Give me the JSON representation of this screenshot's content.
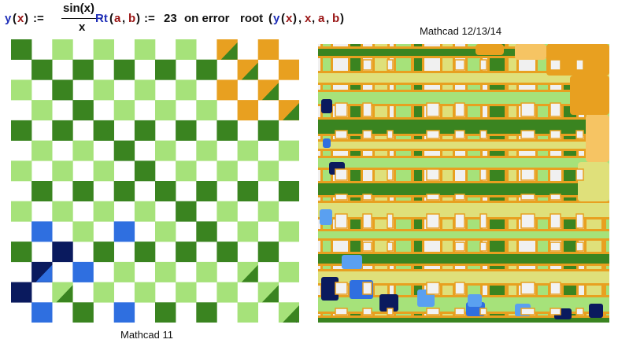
{
  "formula": {
    "y_name": "y",
    "y_arg": "x",
    "define": ":=",
    "numerator": "sin(x)",
    "denominator": "x",
    "rt_name": "Rt",
    "rt_a": "a",
    "rt_b": "b",
    "rt_value": "23",
    "on_error": "on error",
    "root_fn": "root",
    "root_y": "y",
    "root_x": "x",
    "root_a": "a",
    "root_b": "b"
  },
  "captions": {
    "left": "Mathcad 11",
    "right": "Mathcad 12/13/14"
  },
  "colors": {
    "light_green": "#a6e27a",
    "mid_green": "#6ab446",
    "dark_green": "#3a8420",
    "deep_green": "#23641a",
    "orange": "#e8a020",
    "light_orange": "#f6c463",
    "pale_yellow": "#dfe07a",
    "blue": "#2f6fe0",
    "light_blue": "#5aa0f0",
    "navy": "#0a1a5e",
    "gray_bg": "#f0f0f0"
  }
}
